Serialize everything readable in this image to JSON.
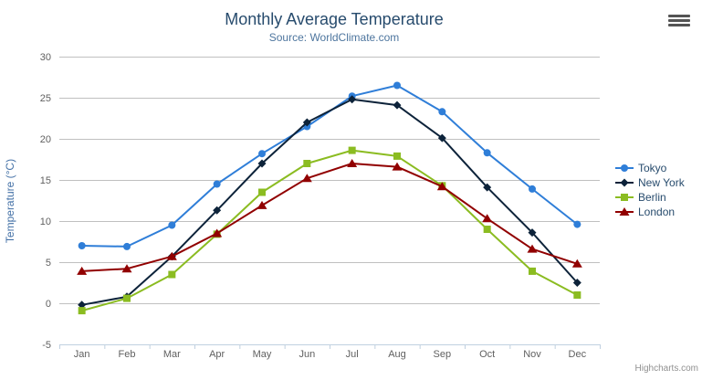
{
  "chart_data": {
    "type": "line",
    "title": "Monthly Average Temperature",
    "subtitle": "Source: WorldClimate.com",
    "xlabel": "",
    "ylabel": "Temperature (°C)",
    "categories": [
      "Jan",
      "Feb",
      "Mar",
      "Apr",
      "May",
      "Jun",
      "Jul",
      "Aug",
      "Sep",
      "Oct",
      "Nov",
      "Dec"
    ],
    "ylim": [
      -5,
      30
    ],
    "yticks": [
      -5,
      0,
      5,
      10,
      15,
      20,
      25,
      30
    ],
    "grid": true,
    "legend_position": "right-middle",
    "series": [
      {
        "name": "Tokyo",
        "color": "#2f7ed8",
        "marker": "circle",
        "values": [
          7.0,
          6.9,
          9.5,
          14.5,
          18.2,
          21.5,
          25.2,
          26.5,
          23.3,
          18.3,
          13.9,
          9.6
        ]
      },
      {
        "name": "New York",
        "color": "#0d233a",
        "marker": "diamond",
        "values": [
          -0.2,
          0.8,
          5.7,
          11.3,
          17.0,
          22.0,
          24.8,
          24.1,
          20.1,
          14.1,
          8.6,
          2.5
        ]
      },
      {
        "name": "Berlin",
        "color": "#8bbc21",
        "marker": "square",
        "values": [
          -0.9,
          0.6,
          3.5,
          8.4,
          13.5,
          17.0,
          18.6,
          17.9,
          14.3,
          9.0,
          3.9,
          1.0
        ]
      },
      {
        "name": "London",
        "color": "#910000",
        "marker": "triangle",
        "values": [
          3.9,
          4.2,
          5.7,
          8.5,
          11.9,
          15.2,
          17.0,
          16.6,
          14.2,
          10.3,
          6.6,
          4.8
        ]
      }
    ]
  },
  "credits": "Highcharts.com",
  "icons": {
    "export_menu": "hamburger-icon"
  },
  "colors": {
    "title": "#274b6d",
    "subtitle": "#4d759e",
    "axis_labels": "#606060",
    "axis_title": "#4572a7",
    "legend_text": "#274b6d",
    "gridline": "#c0c0c0",
    "axis_line": "#c0d0e0",
    "credits": "#909090",
    "background": "#ffffff"
  }
}
